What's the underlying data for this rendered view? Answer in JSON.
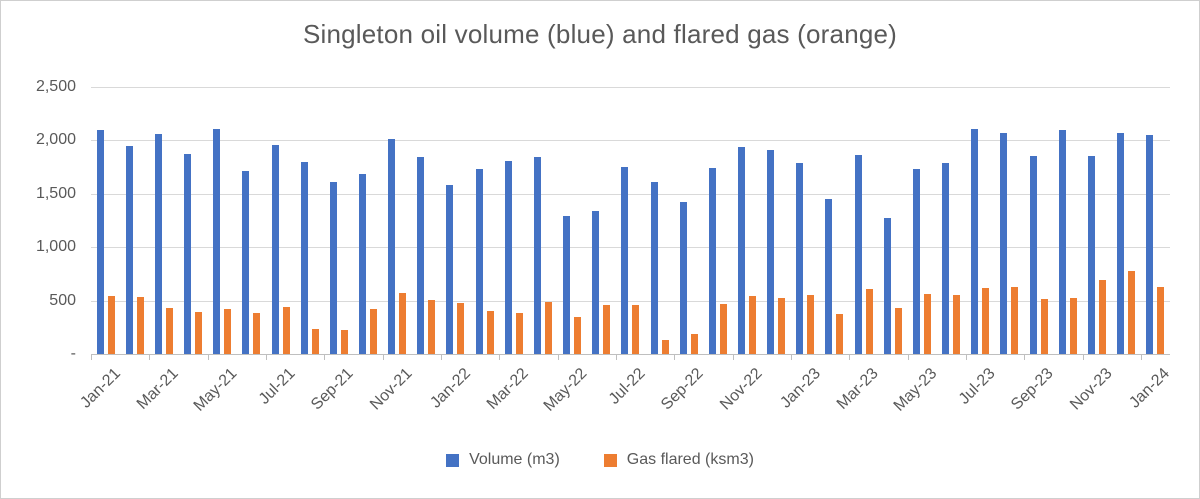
{
  "chart": {
    "title": "Singleton oil volume (blue) and flared gas (orange)"
  },
  "chart_data": {
    "type": "bar",
    "title": "Singleton oil volume (blue) and flared gas (orange)",
    "categories": [
      "Jan-21",
      "Feb-21",
      "Mar-21",
      "Apr-21",
      "May-21",
      "Jun-21",
      "Jul-21",
      "Aug-21",
      "Sep-21",
      "Oct-21",
      "Nov-21",
      "Dec-21",
      "Jan-22",
      "Feb-22",
      "Mar-22",
      "Apr-22",
      "May-22",
      "Jun-22",
      "Jul-22",
      "Aug-22",
      "Sep-22",
      "Oct-22",
      "Nov-22",
      "Dec-22",
      "Jan-23",
      "Feb-23",
      "Mar-23",
      "Apr-23",
      "May-23",
      "Jun-23",
      "Jul-23",
      "Aug-23",
      "Sep-23",
      "Oct-23",
      "Nov-23",
      "Dec-23",
      "Jan-24"
    ],
    "series": [
      {
        "name": "Volume (m3)",
        "color": "#4472C4",
        "values": [
          2100,
          1950,
          2060,
          1870,
          2110,
          1715,
          1960,
          1795,
          1615,
          1690,
          2010,
          1845,
          1580,
          1730,
          1810,
          1840,
          1290,
          1340,
          1750,
          1610,
          1420,
          1745,
          1935,
          1910,
          1785,
          1450,
          1860,
          1275,
          1730,
          1790,
          2110,
          2070,
          1850,
          2100,
          1855,
          2070,
          2050
        ]
      },
      {
        "name": "Gas flared (ksm3)",
        "color": "#ED7D31",
        "values": [
          540,
          535,
          435,
          395,
          420,
          380,
          440,
          235,
          225,
          420,
          570,
          505,
          475,
          400,
          385,
          485,
          345,
          460,
          460,
          130,
          190,
          465,
          540,
          525,
          550,
          375,
          610,
          435,
          565,
          555,
          620,
          625,
          515,
          520,
          695,
          775,
          630
        ]
      }
    ],
    "x_tick_labels": [
      "Jan-21",
      "Mar-21",
      "May-21",
      "Jul-21",
      "Sep-21",
      "Nov-21",
      "Jan-22",
      "Mar-22",
      "May-22",
      "Jul-22",
      "Sep-22",
      "Nov-22",
      "Jan-23",
      "Mar-23",
      "May-23",
      "Jul-23",
      "Sep-23",
      "Nov-23",
      "Jan-24"
    ],
    "y_axis": {
      "tick_labels": [
        "2,500",
        "2,000",
        "1,500",
        "1,000",
        "500",
        "-"
      ],
      "tick_values": [
        2500,
        2000,
        1500,
        1000,
        500,
        0
      ]
    },
    "ylim": [
      0,
      2500
    ],
    "grid": true,
    "legend_position": "bottom"
  },
  "colors": {
    "volume_blue": "#4472C4",
    "gas_orange": "#ED7D31",
    "gridline": "#d9d9d9",
    "axis_line": "#bfbfbf",
    "text": "#595959"
  }
}
